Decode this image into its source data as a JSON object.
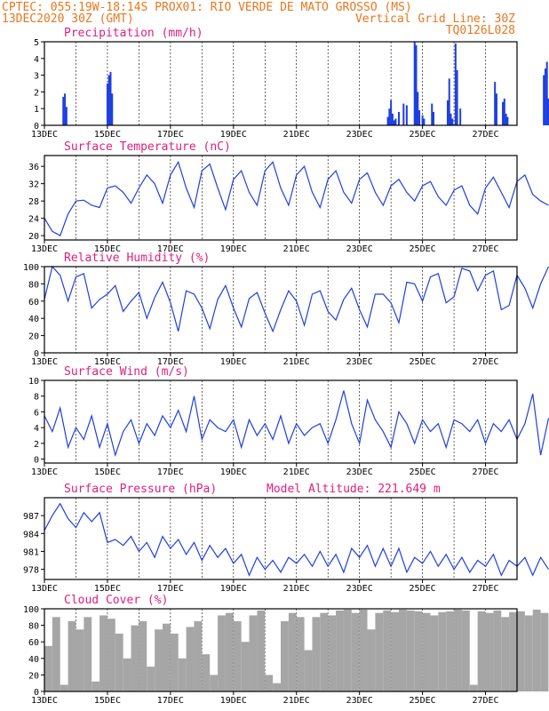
{
  "header": {
    "line1_left": "CPTEC: 055:19W-18:14S PROX01: RIO VERDE DE MATO GROSSO (MS)",
    "line2_left": "13DEC2020 30Z (GMT)",
    "line2_right": "Vertical Grid Line: 30Z",
    "line3_right": "TQ0126L028"
  },
  "x_ticks": [
    "13DEC",
    "15DEC",
    "17DEC",
    "19DEC",
    "21DEC",
    "23DEC",
    "25DEC",
    "27DEC"
  ],
  "colors": {
    "header": "#e8771e",
    "title": "#e0207a",
    "series": "#1f3fe0",
    "cloud": "#a6a6a6"
  },
  "chart_data": [
    {
      "type": "bar",
      "title": "Precipitation (mm/h)",
      "x_unit": "days since 13DEC",
      "ylim": [
        0,
        5
      ],
      "yticks": [
        0,
        1,
        2,
        3,
        4,
        5
      ],
      "x": [
        0.6,
        0.65,
        0.7,
        2.0,
        2.05,
        2.1,
        2.15,
        10.9,
        10.95,
        11.0,
        11.05,
        11.1,
        11.15,
        11.25,
        11.4,
        11.5,
        11.75,
        11.8,
        11.85,
        11.9,
        12.0,
        12.05,
        12.3,
        12.35,
        12.8,
        12.85,
        12.9,
        12.95,
        13.05,
        13.1,
        13.2,
        14.3,
        14.35,
        14.55,
        14.6,
        14.65,
        14.7,
        15.85,
        15.9,
        15.95,
        16.0
      ],
      "values": [
        1.7,
        1.9,
        1.1,
        2.5,
        3.0,
        3.2,
        1.9,
        0.5,
        1.0,
        1.5,
        0.7,
        0.3,
        0.4,
        0.8,
        1.3,
        1.2,
        5.0,
        4.8,
        2.0,
        0.9,
        0.6,
        0.4,
        1.3,
        0.8,
        1.5,
        2.8,
        0.7,
        0.4,
        4.9,
        3.3,
        1.0,
        2.6,
        1.9,
        1.4,
        1.6,
        0.7,
        0.5,
        3.0,
        3.4,
        3.8,
        1.6
      ]
    },
    {
      "type": "line",
      "title": "Surface Temperature (nC)",
      "x_unit": "days since 13DEC",
      "ylim": [
        19,
        38.5
      ],
      "yticks": [
        20,
        24,
        28,
        32,
        36
      ],
      "x": [
        0,
        0.25,
        0.5,
        0.75,
        1,
        1.25,
        1.5,
        1.75,
        2,
        2.25,
        2.5,
        2.75,
        3,
        3.25,
        3.5,
        3.75,
        4,
        4.25,
        4.5,
        4.75,
        5,
        5.25,
        5.5,
        5.75,
        6,
        6.25,
        6.5,
        6.75,
        7,
        7.25,
        7.5,
        7.75,
        8,
        8.25,
        8.5,
        8.75,
        9,
        9.25,
        9.5,
        9.75,
        10,
        10.25,
        10.5,
        10.75,
        11,
        11.25,
        11.5,
        11.75,
        12,
        12.25,
        12.5,
        12.75,
        13,
        13.25,
        13.5,
        13.75,
        14,
        14.25,
        14.5,
        14.75,
        15,
        15.25,
        15.5,
        15.75,
        16
      ],
      "values": [
        24,
        21,
        20,
        25,
        28,
        28.2,
        27,
        26.5,
        31,
        31.5,
        30,
        27.5,
        31,
        34,
        32,
        27.5,
        34,
        37,
        31,
        26.5,
        35,
        36.5,
        31,
        26,
        33,
        35,
        30,
        27,
        35,
        37,
        31,
        27,
        34,
        36,
        30,
        26.5,
        33,
        35,
        30,
        27.5,
        33,
        34.5,
        30,
        27,
        31.5,
        33,
        30,
        28,
        31.5,
        32.5,
        29,
        27,
        30.5,
        31.5,
        27,
        25,
        31,
        33.5,
        30,
        26.5,
        32.5,
        34,
        29.5,
        28,
        27
      ]
    },
    {
      "type": "line",
      "title": "Relative Humidity (%)",
      "x_unit": "days since 13DEC",
      "ylim": [
        0,
        100
      ],
      "yticks": [
        0,
        20,
        40,
        60,
        80,
        100
      ],
      "x": [
        0,
        0.25,
        0.5,
        0.75,
        1,
        1.25,
        1.5,
        1.75,
        2,
        2.25,
        2.5,
        2.75,
        3,
        3.25,
        3.5,
        3.75,
        4,
        4.25,
        4.5,
        4.75,
        5,
        5.25,
        5.5,
        5.75,
        6,
        6.25,
        6.5,
        6.75,
        7,
        7.25,
        7.5,
        7.75,
        8,
        8.25,
        8.5,
        8.75,
        9,
        9.25,
        9.5,
        9.75,
        10,
        10.25,
        10.5,
        10.75,
        11,
        11.25,
        11.5,
        11.75,
        12,
        12.25,
        12.5,
        12.75,
        13,
        13.25,
        13.5,
        13.75,
        14,
        14.25,
        14.5,
        14.75,
        15,
        15.25,
        15.5,
        15.75,
        16
      ],
      "values": [
        62,
        100,
        90,
        60,
        88,
        92,
        52,
        62,
        68,
        78,
        48,
        60,
        70,
        40,
        64,
        82,
        58,
        25,
        72,
        68,
        52,
        28,
        62,
        78,
        52,
        30,
        63,
        70,
        46,
        25,
        50,
        72,
        60,
        32,
        68,
        72,
        48,
        38,
        62,
        75,
        50,
        30,
        68,
        68,
        58,
        35,
        82,
        80,
        60,
        88,
        92,
        58,
        65,
        98,
        95,
        72,
        90,
        95,
        50,
        55,
        90,
        75,
        52,
        80,
        100
      ]
    },
    {
      "type": "line",
      "title": "Surface Wind (m/s)",
      "x_unit": "days since 13DEC",
      "ylim": [
        -0.5,
        10
      ],
      "yticks": [
        0,
        2,
        4,
        6,
        8,
        10
      ],
      "x": [
        0,
        0.25,
        0.5,
        0.75,
        1,
        1.25,
        1.5,
        1.75,
        2,
        2.25,
        2.5,
        2.75,
        3,
        3.25,
        3.5,
        3.75,
        4,
        4.25,
        4.5,
        4.75,
        5,
        5.25,
        5.5,
        5.75,
        6,
        6.25,
        6.5,
        6.75,
        7,
        7.25,
        7.5,
        7.75,
        8,
        8.25,
        8.5,
        8.75,
        9,
        9.25,
        9.5,
        9.75,
        10,
        10.25,
        10.5,
        10.75,
        11,
        11.25,
        11.5,
        11.75,
        12,
        12.25,
        12.5,
        12.75,
        13,
        13.25,
        13.5,
        13.75,
        14,
        14.25,
        14.5,
        14.75,
        15,
        15.25,
        15.5,
        15.75,
        16
      ],
      "values": [
        5.5,
        3.5,
        6.5,
        1.5,
        4,
        2.5,
        5.5,
        1.5,
        4.5,
        0.5,
        3.5,
        5,
        2,
        4.5,
        3,
        5.5,
        4,
        6.2,
        3.5,
        8,
        2.5,
        5,
        4,
        3.5,
        5,
        1.5,
        5,
        3,
        4.5,
        2.5,
        5.5,
        2,
        4.5,
        3,
        4,
        4.5,
        2,
        5,
        8.7,
        4.5,
        2,
        7.5,
        5,
        3.5,
        1.5,
        6,
        4.5,
        2,
        5,
        3.5,
        4.5,
        1.5,
        5,
        4.5,
        3.5,
        5,
        2,
        4.5,
        3.5,
        5,
        2.5,
        4.5,
        8.3,
        0.5,
        5.2
      ]
    },
    {
      "type": "line",
      "title": "Surface Pressure (hPa)",
      "annotation": "Model Altitude: 221.649 m",
      "x_unit": "days since 13DEC",
      "ylim": [
        976.3,
        990
      ],
      "yticks": [
        978,
        981,
        984,
        987
      ],
      "x": [
        0,
        0.25,
        0.5,
        0.75,
        1,
        1.25,
        1.5,
        1.75,
        2,
        2.25,
        2.5,
        2.75,
        3,
        3.25,
        3.5,
        3.75,
        4,
        4.25,
        4.5,
        4.75,
        5,
        5.25,
        5.5,
        5.75,
        6,
        6.25,
        6.5,
        6.75,
        7,
        7.25,
        7.5,
        7.75,
        8,
        8.25,
        8.5,
        8.75,
        9,
        9.25,
        9.5,
        9.75,
        10,
        10.25,
        10.5,
        10.75,
        11,
        11.25,
        11.5,
        11.75,
        12,
        12.25,
        12.5,
        12.75,
        13,
        13.25,
        13.5,
        13.75,
        14,
        14.25,
        14.5,
        14.75,
        15,
        15.25,
        15.5,
        15.75,
        16
      ],
      "values": [
        984.5,
        987,
        989,
        986.5,
        985,
        987.5,
        986,
        987.5,
        982.5,
        983,
        982,
        983.5,
        981,
        982.5,
        980,
        983.5,
        981.5,
        983,
        980.5,
        982.5,
        979.5,
        982,
        980,
        981.5,
        979,
        980.5,
        977,
        980,
        978,
        979.5,
        977.5,
        980,
        979,
        980.5,
        978.5,
        981,
        978.5,
        980.5,
        977.5,
        981.5,
        980,
        982,
        978.5,
        981.5,
        978.5,
        981.5,
        977.5,
        980,
        979,
        981,
        978.5,
        980.5,
        978,
        980,
        977.5,
        979.5,
        978.5,
        980.5,
        977,
        979.5,
        978.5,
        980,
        977,
        980,
        978
      ]
    },
    {
      "type": "bar",
      "title": "Cloud Cover (%)",
      "x_unit": "days since 13DEC",
      "ylim": [
        0,
        100
      ],
      "yticks": [
        0,
        20,
        40,
        60,
        80,
        100
      ],
      "x": [
        0,
        0.25,
        0.5,
        0.75,
        1,
        1.25,
        1.5,
        1.75,
        2,
        2.25,
        2.5,
        2.75,
        3,
        3.25,
        3.5,
        3.75,
        4,
        4.25,
        4.5,
        4.75,
        5,
        5.25,
        5.5,
        5.75,
        6,
        6.25,
        6.5,
        6.75,
        7,
        7.25,
        7.5,
        7.75,
        8,
        8.25,
        8.5,
        8.75,
        9,
        9.25,
        9.5,
        9.75,
        10,
        10.25,
        10.5,
        10.75,
        11,
        11.25,
        11.5,
        11.75,
        12,
        12.25,
        12.5,
        12.75,
        13,
        13.25,
        13.5,
        13.75,
        14,
        14.25,
        14.5,
        14.75,
        15,
        15.25,
        15.5,
        15.75
      ],
      "values": [
        55,
        90,
        8,
        85,
        75,
        90,
        12,
        92,
        88,
        70,
        40,
        80,
        85,
        30,
        75,
        82,
        70,
        40,
        78,
        85,
        45,
        20,
        92,
        95,
        85,
        60,
        92,
        98,
        20,
        10,
        85,
        95,
        90,
        50,
        90,
        95,
        92,
        98,
        99,
        95,
        99,
        75,
        95,
        98,
        96,
        99,
        98,
        97,
        95,
        92,
        96,
        97,
        99,
        98,
        8,
        97,
        95,
        98,
        90,
        96,
        97,
        92,
        99,
        95
      ]
    }
  ]
}
